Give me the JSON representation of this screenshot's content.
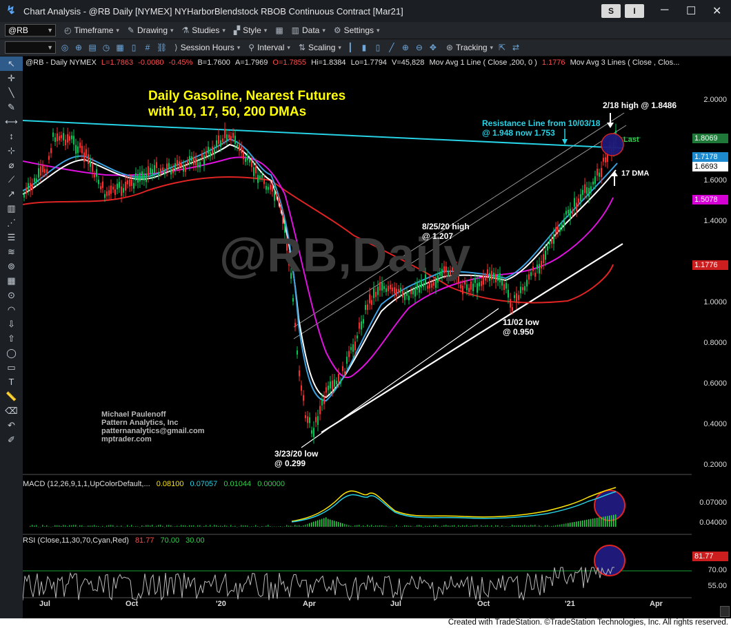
{
  "window": {
    "title": "Chart Analysis - @RB Daily [NYMEX] NYHarborBlendstock RBOB Continuous Contract [Mar21]",
    "btn_s": "S",
    "btn_i": "I",
    "minimize": "─",
    "maximize": "☐",
    "close": "✕"
  },
  "toolbar1": {
    "symbol": "@RB",
    "timeframe": "Timeframe",
    "drawing": "Drawing",
    "studies": "Studies",
    "style": "Style",
    "data": "Data",
    "settings": "Settings"
  },
  "toolbar2": {
    "session_hours": "Session Hours",
    "interval": "Interval",
    "scaling": "Scaling",
    "tracking": "Tracking"
  },
  "header": {
    "symbol": "@RB - Daily  NYMEX",
    "last": "L=1.7863",
    "change": "-0.0080",
    "pct": "-0.45%",
    "bid": "B=1.7600",
    "ask": "A=1.7969",
    "open": "O=1.7855",
    "high": "Hi=1.8384",
    "low": "Lo=1.7794",
    "vol": "V=45,828",
    "ma1": "Mov Avg 1 Line (      Close ,200,          0 )",
    "ma1_val": "1.1776",
    "ma3": "Mov Avg 3 Lines (  Close ,  Clos..."
  },
  "annotations": {
    "title_line1": "Daily Gasoline, Nearest Futures",
    "title_line2": "with 10, 17, 50, 200 DMAs",
    "resistance_line1": "Resistance Line from 10/03/18",
    "resistance_line2": "@ 1.948 now 1.753",
    "high_label": "2/18 high @ 1.8486",
    "last_label": "Last",
    "dma17": "17 DMA",
    "aug_line1": "8/25/20 high",
    "aug_line2": "@ 1.207",
    "nov_line1": "11/02 low",
    "nov_line2": "@ 0.950",
    "mar_line1": "3/23/20 low",
    "mar_line2": "@ 0.299",
    "author1": "Michael Paulenoff",
    "author2": "Pattern Analytics, Inc",
    "author3": "patternanalytics@gmail.com",
    "author4": "mptrader.com",
    "watermark": "@RB,Daily"
  },
  "price_axis": {
    "labels": [
      "2.0000",
      "1.6000",
      "1.4000",
      "1.0000",
      "0.8000",
      "0.6000",
      "0.4000",
      "0.2000"
    ],
    "badges": [
      {
        "text": "1.8069",
        "bg": "#1f7a3a",
        "fg": "#ffffff"
      },
      {
        "text": "1.7178",
        "bg": "#1d8ad0",
        "fg": "#ffffff"
      },
      {
        "text": "1.6693",
        "bg": "#ffffff",
        "fg": "#000000"
      },
      {
        "text": "1.5078",
        "bg": "#d400d4",
        "fg": "#ffffff"
      },
      {
        "text": "1.1776",
        "bg": "#cc1e1e",
        "fg": "#ffffff"
      }
    ]
  },
  "macd": {
    "label": "MACD (12,26,9,1,1,UpColorDefault,...",
    "v1": "0.08100",
    "v2": "0.07057",
    "v3": "0.01044",
    "v4": "0.00000",
    "axis": [
      "0.07000",
      "0.04000"
    ]
  },
  "rsi": {
    "label": "RSI (Close,11,30,70,Cyan,Red)",
    "v1": "81.77",
    "v2": "70.00",
    "v3": "30.00",
    "axis": [
      "81.77",
      "70.00",
      "55.00"
    ]
  },
  "time_axis": [
    "Jul",
    "Oct",
    "'20",
    "Apr",
    "Jul",
    "Oct",
    "'21",
    "Apr"
  ],
  "footer": "Created with TradeStation. ©TradeStation Technologies, Inc. All rights reserved.",
  "colors": {
    "up": "#00c853",
    "down": "#ff2a2a",
    "resistance": "#27d3e6",
    "ma200": "#e02424",
    "ma50": "#e010e0",
    "ma17": "#ffffff",
    "ma10": "#3aa0e0",
    "macd": "#ffe600",
    "signal": "#27d3e6",
    "yellow_title": "#ffff00"
  }
}
